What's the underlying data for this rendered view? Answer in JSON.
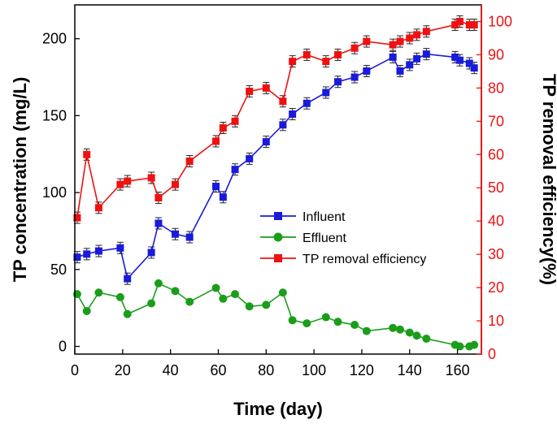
{
  "chart_data": {
    "type": "line",
    "xlabel": "Time (day)",
    "ylabel_left": "TP concentration (mg/L)",
    "ylabel_right": "TP removal efficiency(%)",
    "xlim": [
      0,
      170
    ],
    "ylim_left": [
      -5,
      222
    ],
    "ylim_right": [
      0,
      105
    ],
    "x_ticks": [
      0,
      20,
      40,
      60,
      80,
      100,
      120,
      140,
      160
    ],
    "y_left_ticks": [
      0,
      50,
      100,
      150,
      200
    ],
    "y_right_ticks": [
      0,
      10,
      20,
      30,
      40,
      50,
      60,
      70,
      80,
      90,
      100
    ],
    "series": [
      {
        "name": "Influent",
        "axis": "left",
        "color": "#1a1adb",
        "marker": "square",
        "x": [
          1,
          5,
          10,
          19,
          22,
          32,
          35,
          42,
          48,
          59,
          62,
          67,
          73,
          80,
          87,
          91,
          97,
          105,
          110,
          117,
          122,
          133,
          136,
          140,
          143,
          147,
          159,
          161,
          165,
          167
        ],
        "y": [
          58,
          60,
          62,
          64,
          44,
          61,
          80,
          73,
          71,
          104,
          97,
          115,
          122,
          133,
          144,
          151,
          158,
          165,
          172,
          175,
          179,
          188,
          179,
          183,
          187,
          190,
          188,
          186,
          184,
          181
        ]
      },
      {
        "name": "Effluent",
        "axis": "left",
        "color": "#1a9e1a",
        "marker": "circle",
        "x": [
          1,
          5,
          10,
          19,
          22,
          32,
          35,
          42,
          48,
          59,
          62,
          67,
          73,
          80,
          87,
          91,
          97,
          105,
          110,
          117,
          122,
          133,
          136,
          140,
          143,
          147,
          159,
          161,
          165,
          167
        ],
        "y": [
          34,
          23,
          35,
          32,
          21,
          28,
          41,
          36,
          29,
          38,
          31,
          34,
          26,
          27,
          35,
          17,
          15,
          19,
          16,
          14,
          10,
          12,
          11,
          9,
          7,
          5,
          1,
          0,
          0,
          1
        ]
      },
      {
        "name": "TP removal efficiency",
        "axis": "right",
        "color": "#ee1111",
        "marker": "square",
        "x": [
          1,
          5,
          10,
          19,
          22,
          32,
          35,
          42,
          48,
          59,
          62,
          67,
          73,
          80,
          87,
          91,
          97,
          105,
          110,
          117,
          122,
          133,
          136,
          140,
          143,
          147,
          159,
          161,
          165,
          167
        ],
        "y": [
          41,
          60,
          44,
          51,
          52,
          53,
          47,
          51,
          58,
          64,
          68,
          70,
          79,
          80,
          76,
          88,
          90,
          88,
          90,
          92,
          94,
          93,
          94,
          95,
          96,
          97,
          99,
          100,
          99,
          99
        ]
      }
    ],
    "legend": {
      "position": "center-right",
      "entries": [
        "Influent",
        "Effluent",
        "TP removal efficiency"
      ]
    }
  },
  "style": {
    "axis_color": "#000000",
    "right_axis_color": "#ee1111"
  }
}
